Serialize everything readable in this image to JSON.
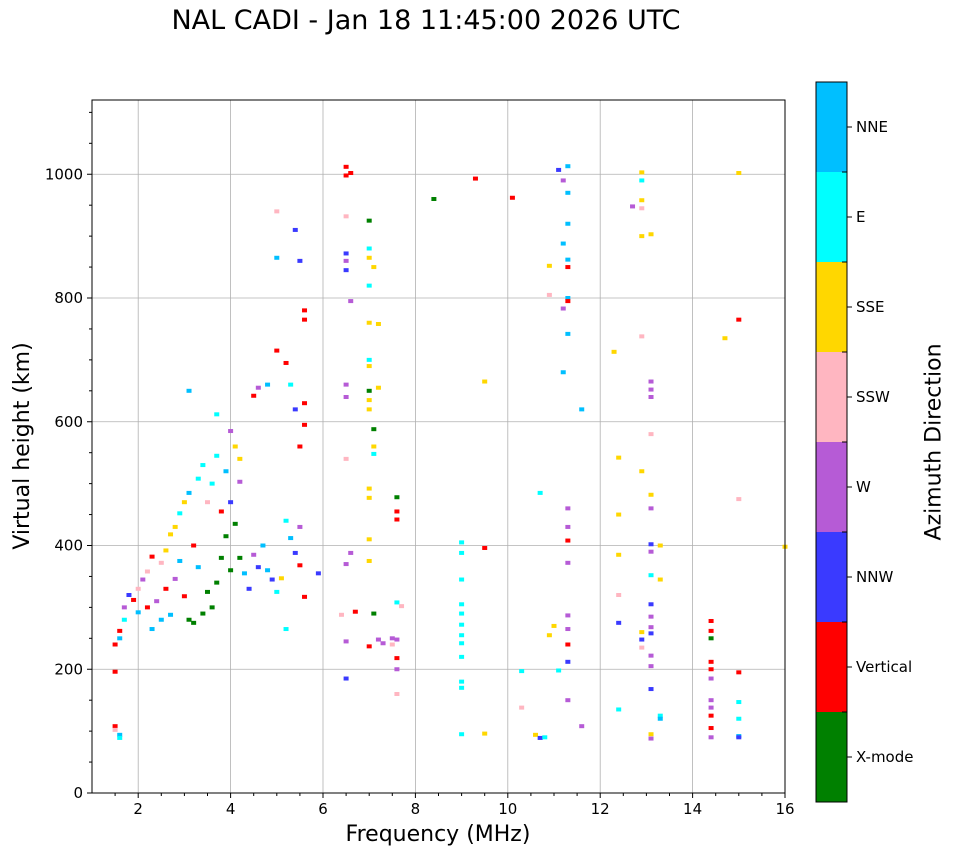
{
  "chart_data": {
    "type": "scatter",
    "title": "NAL CADI - Jan 18 11:45:00 2026 UTC",
    "xlabel": "Frequency (MHz)",
    "ylabel": "Virtual height (km)",
    "xlim": [
      1,
      16
    ],
    "ylim": [
      0,
      1120
    ],
    "xticks": [
      "2",
      "4",
      "6",
      "8",
      "10",
      "12",
      "14",
      "16"
    ],
    "xtick_values": [
      2,
      4,
      6,
      8,
      10,
      12,
      14,
      16
    ],
    "yticks": [
      "0",
      "200",
      "400",
      "600",
      "800",
      "1000"
    ],
    "ytick_values": [
      0,
      200,
      400,
      600,
      800,
      1000
    ],
    "grid": true,
    "colorbar": {
      "label": "Azimuth Direction",
      "categories": [
        {
          "name": "X-mode",
          "color": "#008000"
        },
        {
          "name": "Vertical",
          "color": "#ff0000"
        },
        {
          "name": "NNW",
          "color": "#3a3aff"
        },
        {
          "name": "W",
          "color": "#b65bd6"
        },
        {
          "name": "SSW",
          "color": "#ffb6c1"
        },
        {
          "name": "SSE",
          "color": "#ffd700"
        },
        {
          "name": "E",
          "color": "#00ffff"
        },
        {
          "name": "NNE",
          "color": "#00bfff"
        }
      ]
    },
    "points": [
      [
        1.5,
        108,
        "Vertical"
      ],
      [
        1.5,
        102,
        "SSW"
      ],
      [
        1.6,
        94,
        "NNE"
      ],
      [
        1.6,
        89,
        "E"
      ],
      [
        1.5,
        196,
        "Vertical"
      ],
      [
        1.5,
        240,
        "Vertical"
      ],
      [
        1.6,
        250,
        "NNE"
      ],
      [
        1.6,
        262,
        "Vertical"
      ],
      [
        1.7,
        280,
        "E"
      ],
      [
        1.7,
        300,
        "W"
      ],
      [
        1.8,
        320,
        "NNW"
      ],
      [
        1.9,
        312,
        "Vertical"
      ],
      [
        2.0,
        292,
        "NNE"
      ],
      [
        2.0,
        330,
        "SSW"
      ],
      [
        2.1,
        345,
        "W"
      ],
      [
        2.2,
        358,
        "SSW"
      ],
      [
        2.2,
        300,
        "Vertical"
      ],
      [
        2.3,
        265,
        "NNE"
      ],
      [
        2.3,
        382,
        "Vertical"
      ],
      [
        2.4,
        310,
        "W"
      ],
      [
        2.5,
        372,
        "SSW"
      ],
      [
        2.5,
        280,
        "NNE"
      ],
      [
        2.6,
        392,
        "SSE"
      ],
      [
        2.6,
        330,
        "Vertical"
      ],
      [
        2.7,
        418,
        "SSE"
      ],
      [
        2.7,
        288,
        "NNE"
      ],
      [
        2.8,
        346,
        "W"
      ],
      [
        2.8,
        430,
        "SSE"
      ],
      [
        2.9,
        375,
        "NNE"
      ],
      [
        2.9,
        452,
        "E"
      ],
      [
        3.0,
        470,
        "SSE"
      ],
      [
        3.0,
        318,
        "Vertical"
      ],
      [
        3.1,
        485,
        "NNE"
      ],
      [
        3.1,
        280,
        "X-mode"
      ],
      [
        3.2,
        400,
        "Vertical"
      ],
      [
        3.2,
        275,
        "X-mode"
      ],
      [
        3.3,
        508,
        "E"
      ],
      [
        3.3,
        365,
        "NNE"
      ],
      [
        3.4,
        530,
        "E"
      ],
      [
        3.4,
        290,
        "X-mode"
      ],
      [
        3.5,
        470,
        "SSW"
      ],
      [
        3.5,
        325,
        "X-mode"
      ],
      [
        3.6,
        500,
        "E"
      ],
      [
        3.6,
        300,
        "X-mode"
      ],
      [
        3.7,
        545,
        "E"
      ],
      [
        3.7,
        340,
        "X-mode"
      ],
      [
        3.8,
        380,
        "X-mode"
      ],
      [
        3.8,
        455,
        "Vertical"
      ],
      [
        3.9,
        415,
        "X-mode"
      ],
      [
        3.9,
        520,
        "NNE"
      ],
      [
        4.0,
        360,
        "X-mode"
      ],
      [
        4.0,
        470,
        "NNW"
      ],
      [
        4.1,
        435,
        "X-mode"
      ],
      [
        4.1,
        560,
        "SSE"
      ],
      [
        4.2,
        380,
        "X-mode"
      ],
      [
        4.2,
        503,
        "W"
      ],
      [
        4.3,
        355,
        "NNE"
      ],
      [
        4.4,
        330,
        "NNW"
      ],
      [
        4.5,
        385,
        "W"
      ],
      [
        4.6,
        365,
        "NNW"
      ],
      [
        4.7,
        400,
        "NNE"
      ],
      [
        4.8,
        360,
        "NNE"
      ],
      [
        4.9,
        345,
        "NNW"
      ],
      [
        5.0,
        325,
        "E"
      ],
      [
        5.1,
        347,
        "SSE"
      ],
      [
        5.2,
        440,
        "E"
      ],
      [
        5.3,
        412,
        "NNE"
      ],
      [
        5.4,
        388,
        "NNW"
      ],
      [
        5.5,
        430,
        "W"
      ],
      [
        5.5,
        368,
        "Vertical"
      ],
      [
        3.1,
        650,
        "NNE"
      ],
      [
        3.7,
        612,
        "E"
      ],
      [
        4.0,
        585,
        "W"
      ],
      [
        4.2,
        540,
        "SSE"
      ],
      [
        4.5,
        642,
        "Vertical"
      ],
      [
        4.6,
        655,
        "W"
      ],
      [
        4.8,
        660,
        "NNE"
      ],
      [
        5.0,
        715,
        "Vertical"
      ],
      [
        5.0,
        865,
        "NNE"
      ],
      [
        5.0,
        940,
        "SSW"
      ],
      [
        5.2,
        695,
        "Vertical"
      ],
      [
        5.3,
        660,
        "E"
      ],
      [
        5.4,
        620,
        "NNW"
      ],
      [
        5.4,
        910,
        "NNW"
      ],
      [
        5.5,
        860,
        "NNW"
      ],
      [
        5.6,
        780,
        "Vertical"
      ],
      [
        5.6,
        765,
        "Vertical"
      ],
      [
        5.6,
        595,
        "Vertical"
      ],
      [
        5.5,
        560,
        "Vertical"
      ],
      [
        5.6,
        630,
        "Vertical"
      ],
      [
        5.2,
        265,
        "E"
      ],
      [
        5.6,
        317,
        "Vertical"
      ],
      [
        5.9,
        355,
        "NNW"
      ],
      [
        6.5,
        1012,
        "Vertical"
      ],
      [
        6.5,
        998,
        "Vertical"
      ],
      [
        6.5,
        932,
        "SSW"
      ],
      [
        6.5,
        872,
        "NNW"
      ],
      [
        6.5,
        860,
        "W"
      ],
      [
        6.5,
        845,
        "NNW"
      ],
      [
        6.6,
        795,
        "W"
      ],
      [
        6.5,
        660,
        "W"
      ],
      [
        6.5,
        640,
        "W"
      ],
      [
        6.5,
        540,
        "SSW"
      ],
      [
        6.5,
        370,
        "W"
      ],
      [
        6.6,
        388,
        "W"
      ],
      [
        6.4,
        288,
        "SSW"
      ],
      [
        6.7,
        293,
        "Vertical"
      ],
      [
        6.5,
        245,
        "W"
      ],
      [
        6.5,
        185,
        "NNW"
      ],
      [
        6.6,
        1002,
        "Vertical"
      ],
      [
        7.0,
        925,
        "X-mode"
      ],
      [
        7.0,
        880,
        "E"
      ],
      [
        7.0,
        865,
        "SSE"
      ],
      [
        7.0,
        820,
        "E"
      ],
      [
        7.0,
        760,
        "SSE"
      ],
      [
        7.0,
        700,
        "E"
      ],
      [
        7.0,
        690,
        "SSE"
      ],
      [
        7.0,
        650,
        "X-mode"
      ],
      [
        7.0,
        635,
        "SSE"
      ],
      [
        7.0,
        620,
        "SSE"
      ],
      [
        7.1,
        588,
        "X-mode"
      ],
      [
        7.1,
        560,
        "SSE"
      ],
      [
        7.1,
        548,
        "E"
      ],
      [
        7.0,
        492,
        "SSE"
      ],
      [
        7.0,
        477,
        "SSE"
      ],
      [
        7.0,
        410,
        "SSE"
      ],
      [
        7.0,
        375,
        "SSE"
      ],
      [
        7.1,
        850,
        "SSE"
      ],
      [
        7.2,
        758,
        "SSE"
      ],
      [
        7.2,
        655,
        "SSE"
      ],
      [
        7.1,
        290,
        "X-mode"
      ],
      [
        7.2,
        248,
        "W"
      ],
      [
        7.3,
        242,
        "W"
      ],
      [
        7.5,
        250,
        "W"
      ],
      [
        7.5,
        240,
        "SSW"
      ],
      [
        7.6,
        248,
        "W"
      ],
      [
        7.6,
        308,
        "E"
      ],
      [
        7.6,
        218,
        "Vertical"
      ],
      [
        7.6,
        200,
        "W"
      ],
      [
        7.6,
        160,
        "SSW"
      ],
      [
        7.6,
        478,
        "X-mode"
      ],
      [
        7.6,
        455,
        "Vertical"
      ],
      [
        7.6,
        442,
        "Vertical"
      ],
      [
        7.7,
        302,
        "SSW"
      ],
      [
        7.0,
        237,
        "Vertical"
      ],
      [
        8.4,
        960,
        "X-mode"
      ],
      [
        9.0,
        405,
        "E"
      ],
      [
        9.0,
        388,
        "E"
      ],
      [
        9.0,
        345,
        "E"
      ],
      [
        9.0,
        305,
        "E"
      ],
      [
        9.0,
        290,
        "E"
      ],
      [
        9.0,
        272,
        "E"
      ],
      [
        9.0,
        255,
        "E"
      ],
      [
        9.0,
        242,
        "E"
      ],
      [
        9.0,
        220,
        "E"
      ],
      [
        9.0,
        180,
        "E"
      ],
      [
        9.0,
        170,
        "E"
      ],
      [
        9.0,
        95,
        "E"
      ],
      [
        9.3,
        993,
        "Vertical"
      ],
      [
        9.5,
        665,
        "SSE"
      ],
      [
        9.5,
        396,
        "Vertical"
      ],
      [
        9.5,
        96,
        "SSE"
      ],
      [
        10.1,
        962,
        "Vertical"
      ],
      [
        10.3,
        197,
        "E"
      ],
      [
        10.3,
        138,
        "SSW"
      ],
      [
        10.6,
        94,
        "SSE"
      ],
      [
        10.7,
        89,
        "NNW"
      ],
      [
        10.8,
        90,
        "E"
      ],
      [
        10.7,
        485,
        "E"
      ],
      [
        10.9,
        852,
        "SSE"
      ],
      [
        10.9,
        805,
        "SSW"
      ],
      [
        10.9,
        255,
        "SSE"
      ],
      [
        11.0,
        270,
        "SSE"
      ],
      [
        11.1,
        1007,
        "NNW"
      ],
      [
        11.2,
        990,
        "W"
      ],
      [
        11.3,
        1013,
        "NNE"
      ],
      [
        11.3,
        970,
        "NNE"
      ],
      [
        11.3,
        920,
        "NNE"
      ],
      [
        11.2,
        888,
        "NNE"
      ],
      [
        11.3,
        862,
        "NNE"
      ],
      [
        11.3,
        850,
        "Vertical"
      ],
      [
        11.3,
        800,
        "NNE"
      ],
      [
        11.3,
        795,
        "Vertical"
      ],
      [
        11.2,
        783,
        "W"
      ],
      [
        11.3,
        742,
        "NNE"
      ],
      [
        11.2,
        680,
        "NNE"
      ],
      [
        11.6,
        620,
        "NNE"
      ],
      [
        11.3,
        460,
        "W"
      ],
      [
        11.3,
        430,
        "W"
      ],
      [
        11.3,
        408,
        "Vertical"
      ],
      [
        11.3,
        372,
        "W"
      ],
      [
        11.3,
        287,
        "W"
      ],
      [
        11.3,
        265,
        "W"
      ],
      [
        11.3,
        240,
        "Vertical"
      ],
      [
        11.3,
        212,
        "NNW"
      ],
      [
        11.3,
        150,
        "W"
      ],
      [
        11.6,
        108,
        "W"
      ],
      [
        11.1,
        198,
        "E"
      ],
      [
        12.3,
        713,
        "SSE"
      ],
      [
        12.4,
        542,
        "SSE"
      ],
      [
        12.4,
        450,
        "SSE"
      ],
      [
        12.4,
        385,
        "SSE"
      ],
      [
        12.4,
        320,
        "SSW"
      ],
      [
        12.4,
        275,
        "NNW"
      ],
      [
        12.4,
        135,
        "E"
      ],
      [
        12.7,
        948,
        "W"
      ],
      [
        12.9,
        1003,
        "SSE"
      ],
      [
        12.9,
        990,
        "E"
      ],
      [
        12.9,
        958,
        "SSE"
      ],
      [
        12.9,
        945,
        "SSW"
      ],
      [
        12.9,
        900,
        "SSE"
      ],
      [
        12.9,
        738,
        "SSW"
      ],
      [
        12.9,
        520,
        "SSE"
      ],
      [
        12.9,
        260,
        "SSE"
      ],
      [
        12.9,
        248,
        "NNW"
      ],
      [
        12.9,
        235,
        "SSW"
      ],
      [
        13.1,
        903,
        "SSE"
      ],
      [
        13.1,
        665,
        "W"
      ],
      [
        13.1,
        652,
        "W"
      ],
      [
        13.1,
        640,
        "W"
      ],
      [
        13.1,
        580,
        "SSW"
      ],
      [
        13.1,
        482,
        "SSE"
      ],
      [
        13.1,
        460,
        "W"
      ],
      [
        13.1,
        402,
        "NNW"
      ],
      [
        13.1,
        390,
        "W"
      ],
      [
        13.1,
        352,
        "E"
      ],
      [
        13.1,
        305,
        "NNW"
      ],
      [
        13.1,
        285,
        "W"
      ],
      [
        13.1,
        268,
        "W"
      ],
      [
        13.1,
        258,
        "NNW"
      ],
      [
        13.1,
        222,
        "W"
      ],
      [
        13.1,
        205,
        "W"
      ],
      [
        13.1,
        168,
        "NNW"
      ],
      [
        13.1,
        95,
        "SSE"
      ],
      [
        13.1,
        88,
        "W"
      ],
      [
        13.3,
        400,
        "SSE"
      ],
      [
        13.3,
        345,
        "SSE"
      ],
      [
        13.3,
        125,
        "E"
      ],
      [
        13.3,
        120,
        "NNE"
      ],
      [
        14.4,
        278,
        "Vertical"
      ],
      [
        14.4,
        262,
        "Vertical"
      ],
      [
        14.4,
        250,
        "X-mode"
      ],
      [
        14.4,
        212,
        "Vertical"
      ],
      [
        14.4,
        200,
        "Vertical"
      ],
      [
        14.4,
        185,
        "W"
      ],
      [
        14.4,
        150,
        "W"
      ],
      [
        14.4,
        138,
        "W"
      ],
      [
        14.4,
        125,
        "Vertical"
      ],
      [
        14.4,
        105,
        "Vertical"
      ],
      [
        14.4,
        90,
        "W"
      ],
      [
        14.7,
        735,
        "SSE"
      ],
      [
        15.0,
        1002,
        "SSE"
      ],
      [
        15.0,
        765,
        "Vertical"
      ],
      [
        15.0,
        475,
        "SSW"
      ],
      [
        15.0,
        195,
        "Vertical"
      ],
      [
        15.0,
        147,
        "E"
      ],
      [
        15.0,
        120,
        "E"
      ],
      [
        15.0,
        92,
        "NNE"
      ],
      [
        15.0,
        90,
        "NNW"
      ],
      [
        16.0,
        398,
        "SSE"
      ]
    ]
  }
}
